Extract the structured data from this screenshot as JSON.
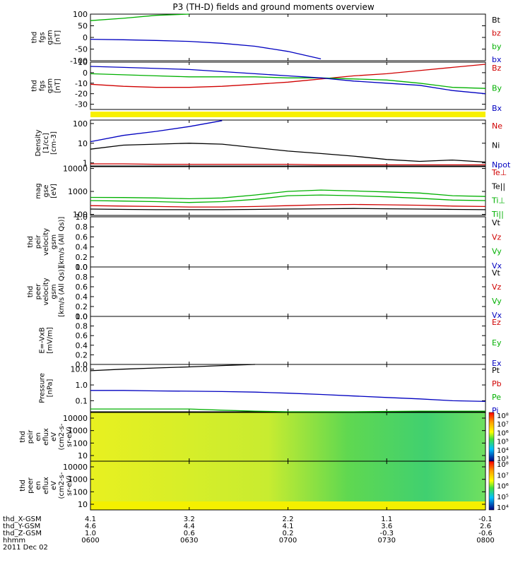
{
  "title": "P3 (TH-D) fields and ground moments overview",
  "panels": [
    {
      "id": "fgs_gsm",
      "ylabel": [
        "thd",
        "fgs",
        "gsm",
        "[nT]"
      ],
      "yticks": [
        100,
        50,
        0,
        -50,
        -100
      ],
      "ylim": [
        -100,
        100
      ],
      "legend": [
        {
          "label": "Bt",
          "color": "#000000"
        },
        {
          "label": "bz",
          "color": "#d00000"
        },
        {
          "label": "by",
          "color": "#00b000"
        },
        {
          "label": "bx",
          "color": "#0000c0"
        }
      ]
    },
    {
      "id": "fgs_gsm_zoom",
      "ylabel": [
        "thd",
        "fgs",
        "gsm",
        "[nT]"
      ],
      "yticks": [
        10,
        0,
        -10,
        -20,
        -30
      ],
      "ylim": [
        -35,
        10
      ],
      "legend": [
        {
          "label": "Bz",
          "color": "#d00000"
        },
        {
          "label": "By",
          "color": "#00b000"
        },
        {
          "label": "Bx",
          "color": "#0000c0"
        }
      ]
    },
    {
      "id": "density",
      "ylabel": [
        "Density",
        "[1/cc]",
        "[cm-3]"
      ],
      "yticks": [
        "100",
        "10",
        "1"
      ],
      "ylim": [
        0.7,
        150
      ],
      "log": true,
      "legend": [
        {
          "label": "Ne",
          "color": "#d00000"
        },
        {
          "label": "Ni",
          "color": "#000000"
        },
        {
          "label": "Npot",
          "color": "#0000c0"
        }
      ]
    },
    {
      "id": "temperature",
      "ylabel": [
        "mag",
        "gse",
        "[eV]"
      ],
      "yticks": [
        "10000",
        "1000",
        "100"
      ],
      "ylim": [
        90,
        12000
      ],
      "log": true,
      "legend": [
        {
          "label": "Te⊥",
          "color": "#d00000"
        },
        {
          "label": "Te||",
          "color": "#000000"
        },
        {
          "label": "Ti⊥",
          "color": "#00b000"
        },
        {
          "label": "Ti||",
          "color": "#00b000"
        }
      ]
    },
    {
      "id": "peir_velocity",
      "ylabel": [
        "thd",
        "peir",
        "velocity",
        "gsm",
        "[km/s (All Qs)]"
      ],
      "yticks": [
        "1.0",
        "0.8",
        "0.6",
        "0.4",
        "0.2",
        "0.0"
      ],
      "legend": [
        {
          "label": "Vt",
          "color": "#000000"
        },
        {
          "label": "Vz",
          "color": "#d00000"
        },
        {
          "label": "Vy",
          "color": "#00b000"
        },
        {
          "label": "Vx",
          "color": "#0000c0"
        }
      ]
    },
    {
      "id": "peer_velocity",
      "ylabel": [
        "thd",
        "peer",
        "velocity",
        "gsm",
        "[km/s (All Qs)]"
      ],
      "yticks": [
        "1.0",
        "0.8",
        "0.6",
        "0.4",
        "0.2",
        "0.0"
      ],
      "legend": [
        {
          "label": "Vt",
          "color": "#000000"
        },
        {
          "label": "Vz",
          "color": "#d00000"
        },
        {
          "label": "Vy",
          "color": "#00b000"
        },
        {
          "label": "Vx",
          "color": "#0000c0"
        }
      ]
    },
    {
      "id": "efield",
      "ylabel": [
        "E=-VxB",
        "[mV/m]"
      ],
      "yticks": [
        "1.0",
        "0.8",
        "0.6",
        "0.4",
        "0.2",
        "0.0"
      ],
      "legend": [
        {
          "label": "Ez",
          "color": "#d00000"
        },
        {
          "label": "Ey",
          "color": "#00b000"
        },
        {
          "label": "Ex",
          "color": "#0000c0"
        }
      ]
    },
    {
      "id": "pressure",
      "ylabel": [
        "Pressure",
        "[nPa]"
      ],
      "yticks": [
        "10.0",
        "1.0",
        "0.1"
      ],
      "ylim": [
        0.02,
        20
      ],
      "log": true,
      "legend": [
        {
          "label": "Pt",
          "color": "#000000"
        },
        {
          "label": "Pb",
          "color": "#d00000"
        },
        {
          "label": "Pe",
          "color": "#00b000"
        },
        {
          "label": "Pi",
          "color": "#0000c0"
        }
      ]
    },
    {
      "id": "peir_spec",
      "ylabel": [
        "thd",
        "peir",
        "en",
        "eflux",
        "eV",
        "(cm2-s-",
        "sr-eV)"
      ],
      "yticks": [
        "10000",
        "1000",
        "100",
        "10"
      ],
      "colorbar_ticks": [
        "10⁸",
        "10⁷",
        "10⁶",
        "10⁵",
        "10⁴",
        "10³"
      ]
    },
    {
      "id": "peer_spec",
      "ylabel": [
        "thd",
        "peer",
        "en",
        "eflux",
        "eV",
        "(cm2-s-",
        "sr-eV)"
      ],
      "yticks": [
        "10000",
        "1000",
        "100",
        "10"
      ],
      "colorbar_ticks": [
        "10⁸",
        "10⁷",
        "10⁶",
        "10⁵",
        "10⁴"
      ]
    }
  ],
  "ephemeris": {
    "rows": [
      {
        "label": "thd_X-GSM",
        "values": [
          "4.1",
          "3.2",
          "2.2",
          "1.1",
          "-0.1"
        ]
      },
      {
        "label": "thd_Y-GSM",
        "values": [
          "4.6",
          "4.4",
          "4.1",
          "3.6",
          "2.6"
        ]
      },
      {
        "label": "thd_Z-GSM",
        "values": [
          "1.0",
          "0.6",
          "0.2",
          "-0.3",
          "-0.6"
        ]
      },
      {
        "label": "hhmm",
        "values": [
          "0600",
          "0630",
          "0700",
          "0730",
          "0800"
        ]
      }
    ],
    "date": "2011 Dec 02"
  },
  "chart_data": [
    {
      "type": "line",
      "panel": "fgs_gsm",
      "x": [
        "0600",
        "0610",
        "0620",
        "0630",
        "0640",
        "0650",
        "0700",
        "0710",
        "0720",
        "0730",
        "0740",
        "0750",
        "0800"
      ],
      "series": [
        {
          "name": "by",
          "values": [
            72,
            82,
            95,
            108,
            null,
            null,
            null,
            null,
            null,
            null,
            null,
            null,
            null
          ]
        },
        {
          "name": "bx",
          "values": [
            -8,
            -10,
            -13,
            -17,
            -25,
            -38,
            -60,
            -92,
            null,
            null,
            null,
            null,
            null
          ]
        }
      ],
      "ylim": [
        -100,
        100
      ]
    },
    {
      "type": "line",
      "panel": "fgs_gsm_zoom",
      "x": [
        "0600",
        "0610",
        "0620",
        "0630",
        "0640",
        "0650",
        "0700",
        "0710",
        "0720",
        "0730",
        "0740",
        "0750",
        "0800"
      ],
      "series": [
        {
          "name": "Bz",
          "values": [
            -11,
            -13,
            -14,
            -14,
            -13,
            -11,
            -9,
            -6,
            -3,
            -1,
            2,
            5,
            8
          ]
        },
        {
          "name": "By",
          "values": [
            -1,
            -2,
            -3,
            -4,
            -4,
            -4,
            -5,
            -5,
            -6,
            -7,
            -10,
            -14,
            -15
          ]
        },
        {
          "name": "Bx",
          "values": [
            6,
            5,
            4,
            3,
            1,
            -1,
            -3,
            -5,
            -8,
            -10,
            -12,
            -17,
            -20
          ]
        }
      ],
      "ylim": [
        -35,
        10
      ]
    },
    {
      "type": "line",
      "panel": "density",
      "x": [
        "0600",
        "0610",
        "0620",
        "0630",
        "0640",
        "0650",
        "0700",
        "0710",
        "0720",
        "0730",
        "0740",
        "0750",
        "0800"
      ],
      "series": [
        {
          "name": "Ni",
          "values": [
            5,
            8,
            9,
            10,
            9,
            6,
            4,
            3,
            2.2,
            1.5,
            1.2,
            1.4,
            1.1
          ]
        },
        {
          "name": "Ne",
          "values": [
            0.9,
            0.9,
            0.85,
            0.85,
            0.85,
            0.85,
            0.85,
            0.8,
            0.8,
            0.8,
            0.8,
            0.8,
            0.8
          ]
        },
        {
          "name": "Npot",
          "values": [
            12,
            25,
            40,
            70,
            140,
            null,
            null,
            null,
            null,
            null,
            null,
            null,
            null
          ]
        }
      ],
      "ylim": [
        0.7,
        150
      ]
    },
    {
      "type": "line",
      "panel": "temperature",
      "x": [
        "0600",
        "0610",
        "0620",
        "0630",
        "0640",
        "0650",
        "0700",
        "0710",
        "0720",
        "0730",
        "0740",
        "0750",
        "0800"
      ],
      "series": [
        {
          "name": "Ti⊥",
          "values": [
            550,
            540,
            520,
            480,
            520,
            700,
            1000,
            1150,
            1050,
            950,
            850,
            650,
            600
          ]
        },
        {
          "name": "Ti||",
          "values": [
            400,
            380,
            360,
            330,
            360,
            450,
            650,
            700,
            650,
            580,
            500,
            420,
            400
          ]
        },
        {
          "name": "Te⊥",
          "values": [
            240,
            230,
            220,
            210,
            210,
            220,
            240,
            260,
            270,
            260,
            250,
            230,
            220
          ]
        },
        {
          "name": "Te||",
          "values": [
            170,
            165,
            160,
            160,
            160,
            165,
            170,
            175,
            180,
            175,
            170,
            165,
            160
          ]
        }
      ],
      "ylim": [
        90,
        12000
      ]
    },
    {
      "type": "line",
      "panel": "pressure",
      "x": [
        "0600",
        "0610",
        "0620",
        "0630",
        "0640",
        "0650",
        "0700",
        "0710",
        "0720",
        "0730",
        "0740",
        "0750",
        "0800"
      ],
      "series": [
        {
          "name": "Pt",
          "values": [
            8,
            10,
            12,
            14,
            17,
            20,
            null,
            null,
            null,
            null,
            null,
            null,
            null
          ]
        },
        {
          "name": "Pi",
          "values": [
            0.45,
            0.45,
            0.42,
            0.4,
            0.38,
            0.35,
            0.3,
            0.25,
            0.2,
            0.16,
            0.13,
            0.1,
            0.09
          ]
        },
        {
          "name": "Pe",
          "values": [
            0.03,
            0.03,
            0.03,
            0.03,
            0.025,
            0.022,
            0.02,
            0.02,
            0.02,
            0.021,
            0.022,
            0.022,
            0.022
          ]
        }
      ],
      "ylim": [
        0.02,
        20
      ]
    }
  ]
}
